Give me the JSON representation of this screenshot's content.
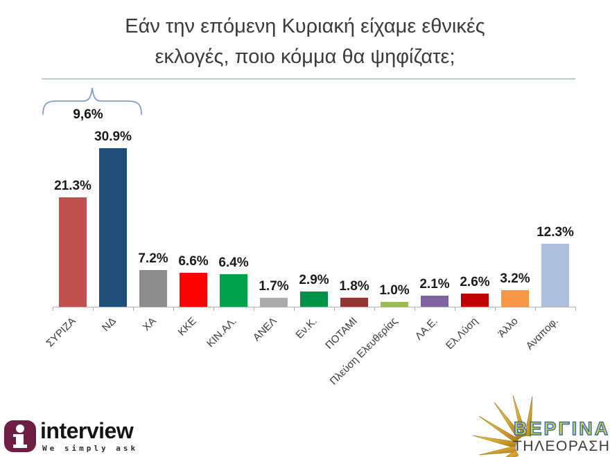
{
  "slide": {
    "title_lines": [
      "Εάν την επόμενη Κυριακή είχαμε εθνικές",
      "εκλογές, ποιο κόμμα θα ψηφίζατε;"
    ]
  },
  "chart_data": {
    "type": "bar",
    "title": "Εάν την επόμενη Κυριακή είχαμε εθνικές εκλογές, ποιο κόμμα θα ψηφίζατε;",
    "categories": [
      "ΣΥΡΙΖΑ",
      "ΝΔ",
      "ΧΑ",
      "ΚΚΕ",
      "ΚΙΝ.ΑΛ.",
      "ΑΝΕΛ",
      "Εν.Κ.",
      "ΠΟΤΑΜΙ",
      "Πλεύση Ελευθερίας",
      "ΛΑ.Ε.",
      "Ελ.Λύση",
      "Άλλο",
      "Αναποφ."
    ],
    "values": [
      21.3,
      30.9,
      7.2,
      6.6,
      6.4,
      1.7,
      2.9,
      1.8,
      1.0,
      2.1,
      2.6,
      3.2,
      12.3
    ],
    "value_labels": [
      "21.3%",
      "30.9%",
      "7.2%",
      "6.6%",
      "6.4%",
      "1.7%",
      "2.9%",
      "1.8%",
      "1.0%",
      "2.1%",
      "2.6%",
      "3.2%",
      "12.3%"
    ],
    "bar_colors": [
      "#c0504d",
      "#1f4e79",
      "#8c8c8c",
      "#ff0000",
      "#00a14b",
      "#ababab",
      "#009347",
      "#943634",
      "#9bbb59",
      "#8064a2",
      "#c00000",
      "#f79646",
      "#aec0dd"
    ],
    "xlabel": "",
    "ylabel": "",
    "ylim": [
      0,
      33
    ],
    "grid": false,
    "legend": "none",
    "annotation": {
      "text": "9,6%"
    }
  },
  "footer": {
    "interview": {
      "brand": "interview",
      "tagline": "We simply ask"
    },
    "vergina": {
      "brand": "ΒΕΡΓΙΝΑ",
      "subtitle": "ΤΗΛΕΟΡΑΣΗ"
    }
  },
  "colors": {
    "brace": "#7b9fd3",
    "axis": "#b0b0b0",
    "interview_badge": "#6e1d45",
    "sun_gold": "#d2a12e"
  }
}
